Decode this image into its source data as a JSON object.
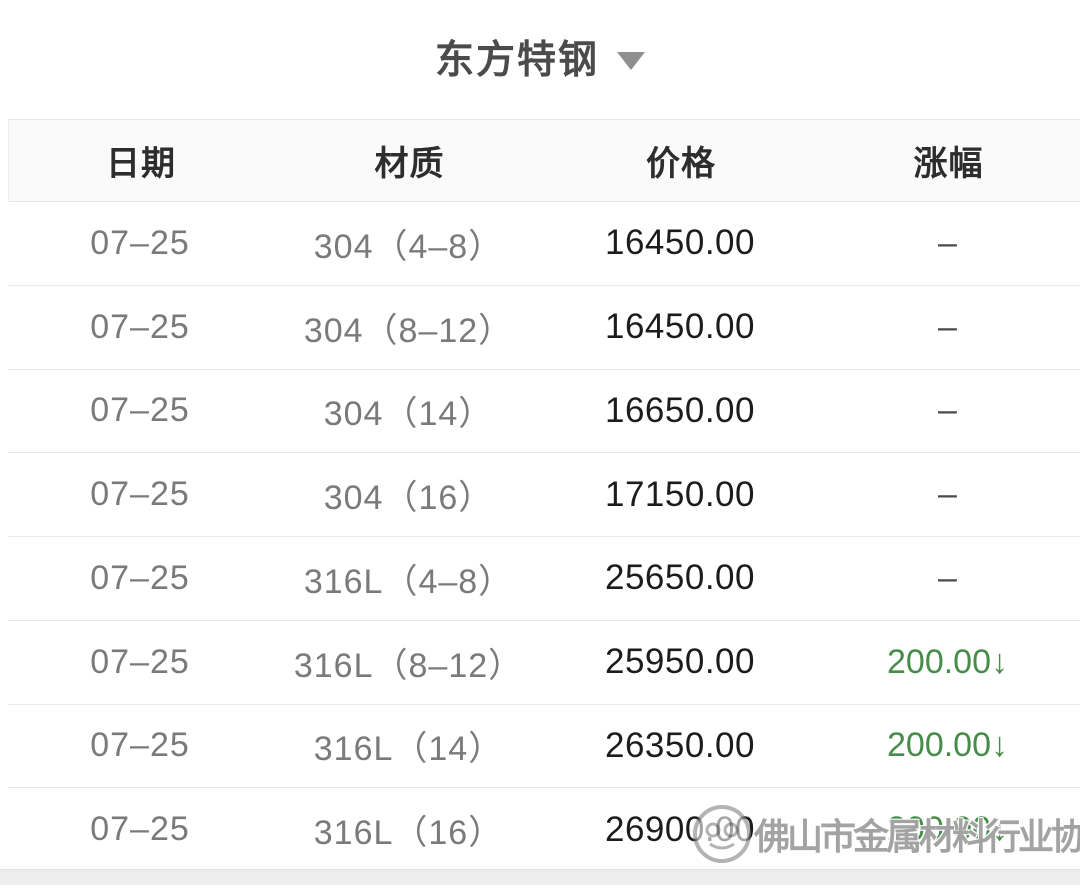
{
  "header": {
    "title": "东方特钢",
    "dropdown_icon": "chevron-down"
  },
  "table": {
    "columns": [
      "日期",
      "材质",
      "价格",
      "涨幅"
    ],
    "rows": [
      {
        "date": "07–25",
        "material": "304（4–8）",
        "price": "16450.00",
        "change": "–",
        "change_type": "flat"
      },
      {
        "date": "07–25",
        "material": "304（8–12）",
        "price": "16450.00",
        "change": "–",
        "change_type": "flat"
      },
      {
        "date": "07–25",
        "material": "304（14）",
        "price": "16650.00",
        "change": "–",
        "change_type": "flat"
      },
      {
        "date": "07–25",
        "material": "304（16）",
        "price": "17150.00",
        "change": "–",
        "change_type": "flat"
      },
      {
        "date": "07–25",
        "material": "316L（4–8）",
        "price": "25650.00",
        "change": "–",
        "change_type": "flat"
      },
      {
        "date": "07–25",
        "material": "316L（8–12）",
        "price": "25950.00",
        "change": "200.00↓",
        "change_type": "down"
      },
      {
        "date": "07–25",
        "material": "316L（14）",
        "price": "26350.00",
        "change": "200.00↓",
        "change_type": "down"
      },
      {
        "date": "07–25",
        "material": "316L（16）",
        "price": "26900.00",
        "change": "200.00↓",
        "change_type": "down"
      }
    ]
  },
  "watermark": {
    "text": "佛山市金属材料行业协会"
  },
  "colors": {
    "down_green": "#478c49",
    "title_gray": "#4b4b4b",
    "muted_text": "#7a7a7a",
    "price_text": "#1c1c1c",
    "header_bg": "#fafafa"
  }
}
